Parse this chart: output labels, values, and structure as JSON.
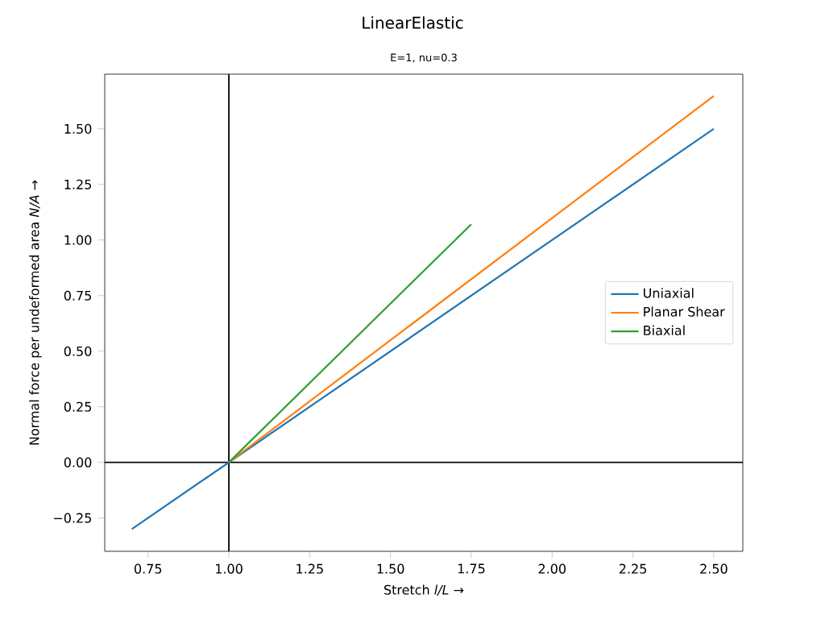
{
  "chart_data": {
    "type": "line",
    "title": "LinearElastic",
    "subtitle": "E=1, nu=0.3",
    "xlabel": "Stretch *l/L*  →",
    "ylabel": "Normal force per undeformed area *N/A*  →",
    "xlim": [
      0.616,
      2.59
    ],
    "ylim": [
      -0.4,
      1.746
    ],
    "xticks": [
      {
        "value": 0.75,
        "label": "0.75"
      },
      {
        "value": 1.0,
        "label": "1.00"
      },
      {
        "value": 1.25,
        "label": "1.25"
      },
      {
        "value": 1.5,
        "label": "1.50"
      },
      {
        "value": 1.75,
        "label": "1.75"
      },
      {
        "value": 2.0,
        "label": "2.00"
      },
      {
        "value": 2.25,
        "label": "2.25"
      },
      {
        "value": 2.5,
        "label": "2.50"
      }
    ],
    "yticks": [
      {
        "value": -0.25,
        "label": "−0.25"
      },
      {
        "value": 0.0,
        "label": "0.00"
      },
      {
        "value": 0.25,
        "label": "0.25"
      },
      {
        "value": 0.5,
        "label": "0.50"
      },
      {
        "value": 0.75,
        "label": "0.75"
      },
      {
        "value": 1.0,
        "label": "1.00"
      },
      {
        "value": 1.25,
        "label": "1.25"
      },
      {
        "value": 1.5,
        "label": "1.50"
      }
    ],
    "series": [
      {
        "name": "Uniaxial",
        "color": "#1f77b4",
        "x": [
          0.7,
          2.5
        ],
        "values": [
          -0.3,
          1.5
        ]
      },
      {
        "name": "Planar Shear",
        "color": "#ff7f0e",
        "x": [
          1.0,
          2.5
        ],
        "values": [
          0.0,
          1.648
        ]
      },
      {
        "name": "Biaxial",
        "color": "#2ca02c",
        "x": [
          1.0,
          1.75
        ],
        "values": [
          0.0,
          1.071
        ]
      }
    ],
    "ref_lines": [
      {
        "axis": "x",
        "value": 1.0,
        "color": "#000000"
      },
      {
        "axis": "y",
        "value": 0.0,
        "color": "#000000"
      }
    ],
    "legend": "right",
    "marker": "none",
    "line_style": "solid"
  }
}
